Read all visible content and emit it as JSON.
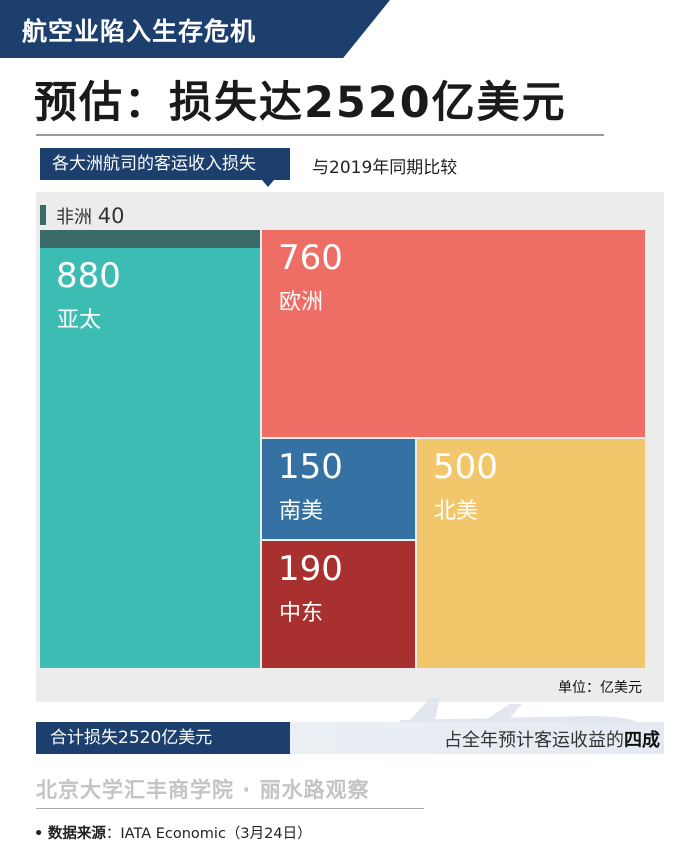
{
  "banner": {
    "title": "航空业陷入生存危机"
  },
  "headline": "预估：损失达2520亿美元",
  "subtitle": {
    "tag": "各大洲航司的客运收入损失",
    "note": "与2019年同期比较"
  },
  "chart_data": {
    "type": "treemap",
    "unit": "单位：亿美元",
    "items": [
      {
        "region": "非洲",
        "value": 40,
        "color": "#3a6b68"
      },
      {
        "region": "亚太",
        "value": 880,
        "color": "#3dbcb4"
      },
      {
        "region": "欧洲",
        "value": 760,
        "color": "#ee6d65"
      },
      {
        "region": "南美",
        "value": 150,
        "color": "#3671a4"
      },
      {
        "region": "北美",
        "value": 500,
        "color": "#f2c76b"
      },
      {
        "region": "中东",
        "value": 190,
        "color": "#a8302f"
      }
    ]
  },
  "labels": {
    "africa": {
      "name": "非洲",
      "value": "40"
    },
    "asia": {
      "name": "亚太",
      "value": "880"
    },
    "europe": {
      "name": "欧洲",
      "value": "760"
    },
    "southam": {
      "name": "南美",
      "value": "150"
    },
    "northam": {
      "name": "北美",
      "value": "500"
    },
    "mideast": {
      "name": "中东",
      "value": "190"
    }
  },
  "footer": {
    "total": "合计损失2520亿美元",
    "share_prefix": "占全年预计客运收益的",
    "share_emph": "四成",
    "institution": "北京大学汇丰商学院 · 丽水路观察",
    "source_key": "数据来源",
    "source_sep": "：",
    "source_val": "IATA Economic（3月24日）",
    "bullet": "•"
  }
}
